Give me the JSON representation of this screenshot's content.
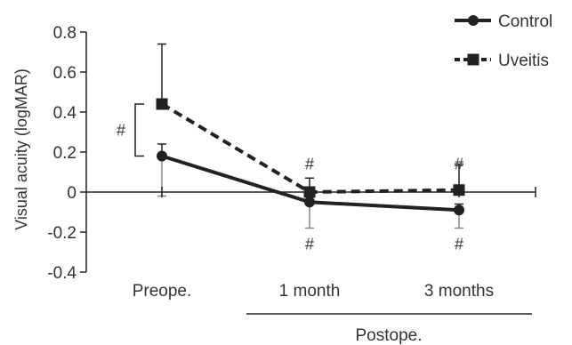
{
  "chart_data": {
    "type": "line",
    "ylabel": "Visual acuity (logMAR)",
    "ylim": [
      -0.4,
      0.8
    ],
    "yticks": [
      {
        "value": 0.8,
        "label": "0.8"
      },
      {
        "value": 0.6,
        "label": "0.6"
      },
      {
        "value": 0.4,
        "label": "0.4"
      },
      {
        "value": 0.2,
        "label": "0.2"
      },
      {
        "value": 0,
        "label": "0"
      },
      {
        "value": -0.2,
        "label": "-0.2"
      },
      {
        "value": -0.4,
        "label": "-0.4"
      }
    ],
    "categories": [
      "Preope.",
      "1 month",
      "3 months"
    ],
    "group_label": "Postope.",
    "legend_position": "top-right",
    "series": [
      {
        "name": "Control",
        "marker": "circle",
        "line_style": "solid",
        "color": "#222222",
        "values": [
          0.18,
          -0.05,
          -0.09
        ],
        "err_plus": [
          0.06,
          0.06,
          0.03
        ],
        "err_minus": [
          0.2,
          0.13,
          0.09
        ],
        "err_color": "#888888"
      },
      {
        "name": "Uveitis",
        "marker": "square",
        "line_style": "dashed",
        "color": "#222222",
        "values": [
          0.44,
          0.0,
          0.01
        ],
        "err_plus": [
          0.3,
          0.07,
          0.13
        ],
        "err_minus": [
          0.0,
          0.0,
          0.0
        ],
        "err_color": "#222222"
      }
    ],
    "annotations": [
      {
        "text": "#",
        "type": "bracket",
        "category": 0,
        "from": 0.18,
        "to": 0.44
      },
      {
        "text": "#",
        "category": 1,
        "value": 0.14
      },
      {
        "text": "#",
        "category": 1,
        "value": -0.26
      },
      {
        "text": "#",
        "category": 2,
        "value": 0.14
      },
      {
        "text": "#",
        "category": 2,
        "value": -0.26
      }
    ]
  }
}
